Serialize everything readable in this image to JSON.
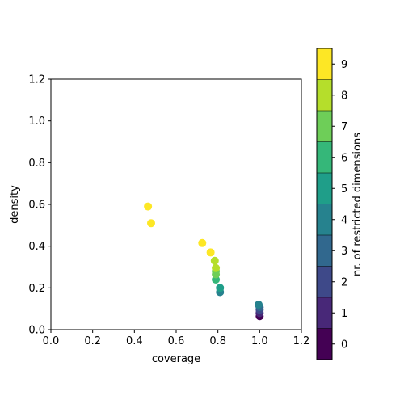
{
  "chart_data": {
    "type": "scatter",
    "xlabel": "coverage",
    "ylabel": "density",
    "xlim": [
      0.0,
      1.2
    ],
    "ylim": [
      0.0,
      1.2
    ],
    "xticks": [
      "0.0",
      "0.2",
      "0.4",
      "0.6",
      "0.8",
      "1.0",
      "1.2"
    ],
    "yticks": [
      "0.0",
      "0.2",
      "0.4",
      "0.6",
      "0.8",
      "1.0",
      "1.2"
    ],
    "grid": false,
    "points": [
      {
        "x": 1.0,
        "y": 0.065,
        "dims": 0
      },
      {
        "x": 1.0,
        "y": 0.08,
        "dims": 1
      },
      {
        "x": 1.0,
        "y": 0.095,
        "dims": 2
      },
      {
        "x": 1.0,
        "y": 0.108,
        "dims": 3
      },
      {
        "x": 0.995,
        "y": 0.12,
        "dims": 4
      },
      {
        "x": 0.81,
        "y": 0.18,
        "dims": 4
      },
      {
        "x": 0.81,
        "y": 0.2,
        "dims": 5
      },
      {
        "x": 0.79,
        "y": 0.24,
        "dims": 6
      },
      {
        "x": 0.79,
        "y": 0.265,
        "dims": 7
      },
      {
        "x": 0.79,
        "y": 0.28,
        "dims": 7
      },
      {
        "x": 0.79,
        "y": 0.295,
        "dims": 8
      },
      {
        "x": 0.785,
        "y": 0.33,
        "dims": 8
      },
      {
        "x": 0.765,
        "y": 0.37,
        "dims": 9
      },
      {
        "x": 0.725,
        "y": 0.415,
        "dims": 9
      },
      {
        "x": 0.48,
        "y": 0.51,
        "dims": 9
      },
      {
        "x": 0.465,
        "y": 0.59,
        "dims": 9
      }
    ],
    "colorbar": {
      "label": "nr. of restricted dimensions",
      "ticks": [
        "0",
        "1",
        "2",
        "3",
        "4",
        "5",
        "6",
        "7",
        "8",
        "9"
      ],
      "colors": [
        "#440154",
        "#482878",
        "#3e4989",
        "#31688e",
        "#26828e",
        "#1f9e89",
        "#35b779",
        "#6ece58",
        "#b5de2b",
        "#fde725"
      ]
    }
  }
}
